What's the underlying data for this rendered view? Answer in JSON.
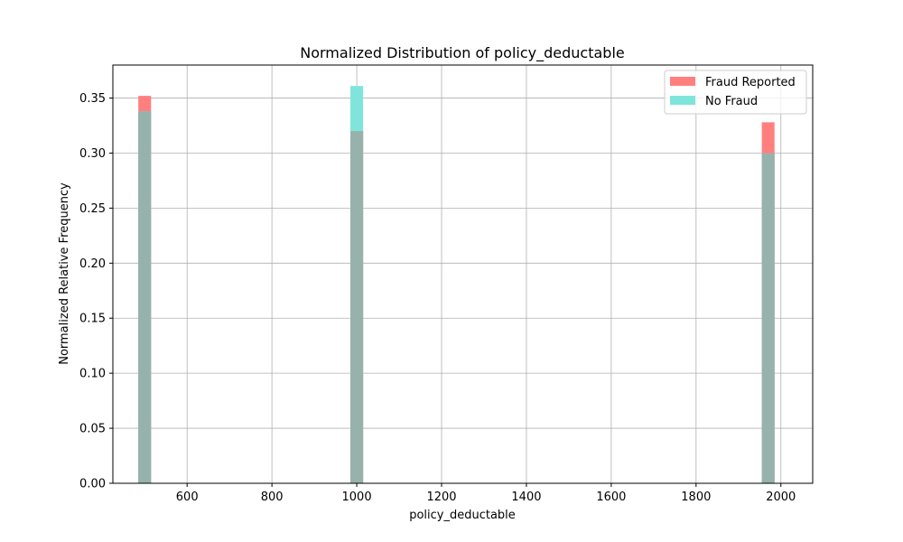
{
  "chart_data": {
    "type": "bar",
    "title": "Normalized Distribution of policy_deductable",
    "xlabel": "policy_deductable",
    "ylabel": "Normalized Relative Frequency",
    "xlim": [
      425,
      2075
    ],
    "ylim": [
      0,
      0.38
    ],
    "xticks": [
      600,
      800,
      1000,
      1200,
      1400,
      1600,
      1800,
      2000
    ],
    "yticks": [
      0.0,
      0.05,
      0.1,
      0.15,
      0.2,
      0.25,
      0.3,
      0.35
    ],
    "grid": true,
    "legend_position": "top-right",
    "bin_width": 30,
    "series": [
      {
        "name": "Fraud Reported",
        "color": "#ff7f7f",
        "x": [
          500,
          1000,
          1970
        ],
        "values": [
          0.352,
          0.32,
          0.328
        ]
      },
      {
        "name": "No Fraud",
        "color": "#7fe5dc",
        "x": [
          500,
          1000,
          1970
        ],
        "values": [
          0.338,
          0.361,
          0.3
        ]
      }
    ],
    "overlap_color": "#97b2ab"
  }
}
